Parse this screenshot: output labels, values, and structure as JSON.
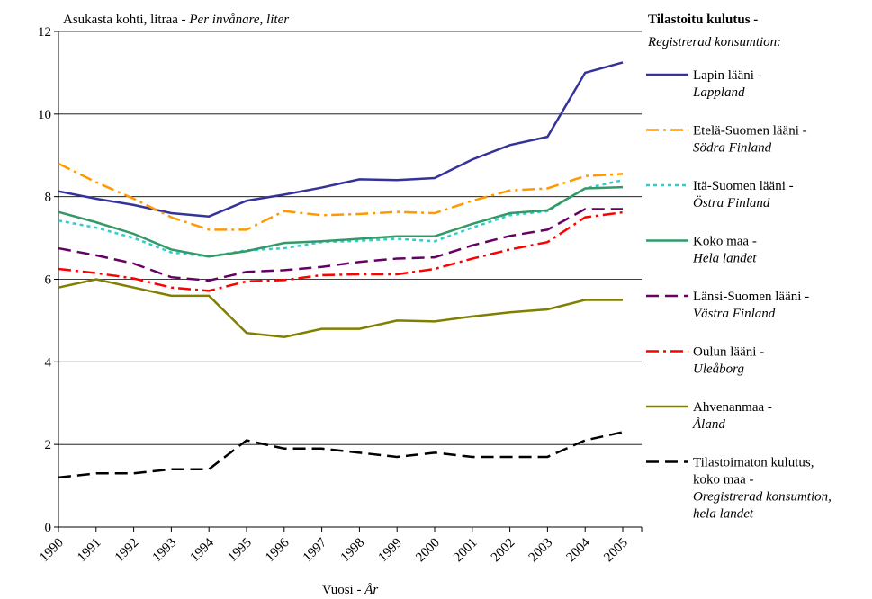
{
  "chart_data": {
    "type": "line",
    "y_label": "Asukasta kohti, litraa -",
    "y_label_sv": "Per invånare, liter",
    "x_label": "Vuosi -",
    "x_label_sv": "År",
    "legend_title": "Tilastoitu kulutus -",
    "legend_subtitle": "Registrerad konsumtion:",
    "legend": "right",
    "grid": true,
    "categories": [
      "1990",
      "1991",
      "1992",
      "1993",
      "1994",
      "1995",
      "1996",
      "1997",
      "1998",
      "1999",
      "2000",
      "2001",
      "2002",
      "2003",
      "2004",
      "2005"
    ],
    "ylim": [
      0,
      12
    ],
    "yticks": [
      0,
      2,
      4,
      6,
      8,
      10,
      12
    ],
    "series": [
      {
        "name": [
          "Lapin lääni -"
        ],
        "name_sv": [
          "Lappland"
        ],
        "color": "#333399",
        "dash": "solid",
        "values": [
          8.13,
          7.95,
          7.8,
          7.6,
          7.52,
          7.9,
          8.05,
          8.22,
          8.42,
          8.4,
          8.45,
          8.9,
          9.25,
          9.45,
          11.0,
          11.25
        ]
      },
      {
        "name": [
          "Etelä-Suomen lääni -"
        ],
        "name_sv": [
          "Södra Finland"
        ],
        "color": "#ff9900",
        "dash": "dashdot",
        "values": [
          8.8,
          8.35,
          7.95,
          7.5,
          7.2,
          7.2,
          7.65,
          7.55,
          7.58,
          7.63,
          7.6,
          7.9,
          8.15,
          8.2,
          8.5,
          8.55
        ]
      },
      {
        "name": [
          "Itä-Suomen lääni -"
        ],
        "name_sv": [
          "Östra Finland"
        ],
        "color": "#33cccc",
        "dash": "dot",
        "values": [
          7.42,
          7.25,
          7.0,
          6.65,
          6.55,
          6.7,
          6.75,
          6.9,
          6.93,
          6.98,
          6.92,
          7.25,
          7.55,
          7.65,
          8.2,
          8.4
        ]
      },
      {
        "name": [
          "Koko maa -"
        ],
        "name_sv": [
          "Hela landet"
        ],
        "color": "#339966",
        "dash": "solid",
        "values": [
          7.63,
          7.38,
          7.1,
          6.72,
          6.55,
          6.68,
          6.88,
          6.92,
          6.98,
          7.04,
          7.04,
          7.34,
          7.6,
          7.67,
          8.2,
          8.23
        ]
      },
      {
        "name": [
          "Länsi-Suomen lääni -"
        ],
        "name_sv": [
          "Västra Finland"
        ],
        "color": "#660066",
        "dash": "dash",
        "values": [
          6.75,
          6.58,
          6.38,
          6.05,
          5.97,
          6.18,
          6.22,
          6.3,
          6.42,
          6.5,
          6.53,
          6.82,
          7.05,
          7.2,
          7.7,
          7.7
        ]
      },
      {
        "name": [
          "Oulun lääni -"
        ],
        "name_sv": [
          "Uleåborg"
        ],
        "color": "#ff0000",
        "dash": "dashdot",
        "values": [
          6.25,
          6.15,
          6.02,
          5.8,
          5.72,
          5.95,
          5.98,
          6.1,
          6.12,
          6.12,
          6.25,
          6.5,
          6.72,
          6.9,
          7.5,
          7.62
        ]
      },
      {
        "name": [
          "Ahvenanmaa -"
        ],
        "name_sv": [
          "Åland"
        ],
        "color": "#808000",
        "dash": "solid",
        "values": [
          5.8,
          6.0,
          5.8,
          5.6,
          5.6,
          4.7,
          4.6,
          4.8,
          4.8,
          5.0,
          4.98,
          5.1,
          5.2,
          5.27,
          5.5,
          5.5
        ]
      },
      {
        "name": [
          "Tilastoimaton kulutus,",
          "koko maa -"
        ],
        "name_sv": [
          "Oregistrerad konsumtion,",
          "hela landet"
        ],
        "color": "#000000",
        "dash": "dash",
        "values": [
          1.2,
          1.3,
          1.3,
          1.4,
          1.4,
          2.1,
          1.9,
          1.9,
          1.8,
          1.7,
          1.8,
          1.7,
          1.7,
          1.7,
          2.1,
          2.3
        ]
      }
    ]
  }
}
